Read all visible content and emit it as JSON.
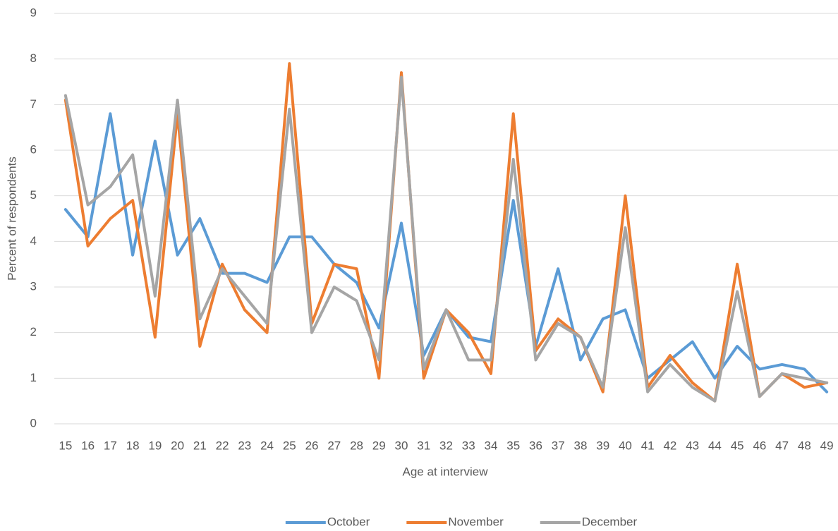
{
  "chart_data": {
    "type": "line",
    "x_label": "Age at interview",
    "y_label": "Percent of respondents",
    "categories": [
      "15",
      "16",
      "17",
      "18",
      "19",
      "20",
      "21",
      "22",
      "23",
      "24",
      "25",
      "26",
      "27",
      "28",
      "29",
      "30",
      "31",
      "32",
      "33",
      "34",
      "35",
      "36",
      "37",
      "38",
      "39",
      "40",
      "41",
      "42",
      "43",
      "44",
      "45",
      "46",
      "47",
      "48",
      "49"
    ],
    "series": [
      {
        "name": "October",
        "color": "#5b9bd5",
        "values": [
          4.7,
          4.1,
          6.8,
          3.7,
          6.2,
          3.7,
          4.5,
          3.3,
          3.3,
          3.1,
          4.1,
          4.1,
          3.5,
          3.1,
          2.1,
          4.4,
          1.5,
          2.5,
          1.9,
          1.8,
          4.9,
          1.7,
          3.4,
          1.4,
          2.3,
          2.5,
          1.0,
          1.4,
          1.8,
          1.0,
          1.7,
          1.2,
          1.3,
          1.2,
          0.7
        ]
      },
      {
        "name": "November",
        "color": "#ed7d31",
        "values": [
          7.1,
          3.9,
          4.5,
          4.9,
          1.9,
          6.8,
          1.7,
          3.5,
          2.5,
          2.0,
          7.9,
          2.2,
          3.5,
          3.4,
          1.0,
          7.7,
          1.0,
          2.5,
          2.0,
          1.1,
          6.8,
          1.6,
          2.3,
          1.9,
          0.7,
          5.0,
          0.8,
          1.5,
          0.9,
          0.5,
          3.5,
          0.6,
          1.1,
          0.8,
          0.9
        ]
      },
      {
        "name": "December",
        "color": "#a5a5a5",
        "values": [
          7.2,
          4.8,
          5.2,
          5.9,
          2.8,
          7.1,
          2.3,
          3.4,
          2.8,
          2.2,
          6.9,
          2.0,
          3.0,
          2.7,
          1.4,
          7.6,
          1.2,
          2.5,
          1.4,
          1.4,
          5.8,
          1.4,
          2.2,
          1.9,
          0.8,
          4.3,
          0.7,
          1.3,
          0.8,
          0.5,
          2.9,
          0.6,
          1.1,
          1.0,
          0.9
        ]
      }
    ],
    "ylim": [
      0,
      9
    ],
    "yticks": [
      0,
      1,
      2,
      3,
      4,
      5,
      6,
      7,
      8,
      9
    ],
    "grid": true,
    "legend": "bottom"
  }
}
